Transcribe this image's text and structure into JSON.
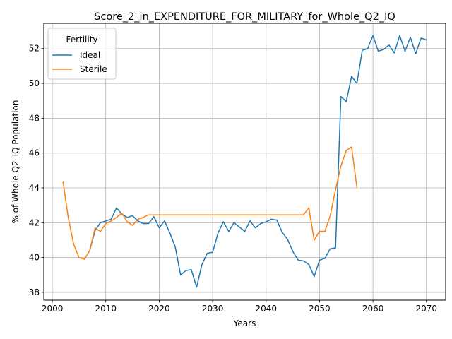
{
  "chart_data": {
    "type": "line",
    "title": "Score_2_in_EXPENDITURE_FOR_MILITARY_for_Whole_Q2_IQ",
    "xlabel": "Years",
    "ylabel": "% of Whole Q2_IQ Population",
    "xlim": [
      1998.4,
      2073.6
    ],
    "ylim": [
      37.55,
      53.45
    ],
    "xticks": [
      2000,
      2010,
      2020,
      2030,
      2040,
      2050,
      2060,
      2070
    ],
    "yticks": [
      38,
      40,
      42,
      44,
      46,
      48,
      50,
      52
    ],
    "grid": true,
    "legend": {
      "title": "Fertility",
      "placement": "top-left"
    },
    "series": [
      {
        "name": "Ideal",
        "color": "#1f77b4",
        "x": [
          2007,
          2008,
          2009,
          2010,
          2011,
          2012,
          2013,
          2014,
          2015,
          2016,
          2017,
          2018,
          2019,
          2020,
          2021,
          2022,
          2023,
          2024,
          2025,
          2026,
          2027,
          2028,
          2029,
          2030,
          2031,
          2032,
          2033,
          2034,
          2035,
          2036,
          2037,
          2038,
          2039,
          2040,
          2041,
          2042,
          2043,
          2044,
          2045,
          2046,
          2047,
          2048,
          2049,
          2050,
          2051,
          2052,
          2053,
          2054,
          2055,
          2056,
          2057,
          2058,
          2059,
          2060,
          2061,
          2062,
          2063,
          2064,
          2065,
          2066,
          2067,
          2068,
          2069,
          2070
        ],
        "y": [
          40.4,
          41.55,
          42.0,
          42.1,
          42.2,
          42.85,
          42.5,
          42.3,
          42.4,
          42.1,
          41.95,
          41.95,
          42.35,
          41.7,
          42.1,
          41.4,
          40.6,
          39.0,
          39.25,
          39.3,
          38.3,
          39.6,
          40.25,
          40.3,
          41.4,
          42.05,
          41.5,
          42.0,
          41.75,
          41.5,
          42.1,
          41.7,
          41.95,
          42.05,
          42.2,
          42.15,
          41.45,
          41.05,
          40.35,
          39.85,
          39.8,
          39.6,
          38.9,
          39.85,
          39.95,
          40.5,
          40.55,
          49.25,
          48.95,
          50.4,
          50.0,
          51.9,
          52.0,
          52.75,
          51.85,
          51.95,
          52.2,
          51.75,
          52.75,
          51.85,
          52.65,
          51.7,
          52.6,
          52.5
        ]
      },
      {
        "name": "Sterile",
        "color": "#ff7f0e",
        "x": [
          2002,
          2003,
          2004,
          2005,
          2006,
          2007,
          2008,
          2009,
          2010,
          2011,
          2012,
          2013,
          2014,
          2015,
          2016,
          2017,
          2018,
          2019,
          2020,
          2021,
          2022,
          2023,
          2024,
          2025,
          2026,
          2027,
          2028,
          2029,
          2030,
          2031,
          2032,
          2033,
          2034,
          2035,
          2036,
          2037,
          2038,
          2039,
          2040,
          2041,
          2042,
          2043,
          2044,
          2045,
          2046,
          2047,
          2048,
          2049,
          2050,
          2051,
          2052,
          2053,
          2054,
          2055,
          2056,
          2057
        ],
        "y": [
          44.35,
          42.25,
          40.75,
          40.0,
          39.9,
          40.4,
          41.7,
          41.5,
          41.95,
          42.1,
          42.3,
          42.55,
          42.05,
          41.85,
          42.2,
          42.3,
          42.45,
          42.45,
          42.45,
          42.45,
          42.45,
          42.45,
          42.45,
          42.45,
          42.45,
          42.45,
          42.45,
          42.45,
          42.45,
          42.45,
          42.45,
          42.45,
          42.45,
          42.45,
          42.45,
          42.45,
          42.45,
          42.45,
          42.45,
          42.45,
          42.45,
          42.45,
          42.45,
          42.45,
          42.45,
          42.45,
          42.85,
          41.0,
          41.5,
          41.5,
          42.4,
          43.9,
          45.25,
          46.15,
          46.35,
          44.0
        ]
      }
    ]
  }
}
